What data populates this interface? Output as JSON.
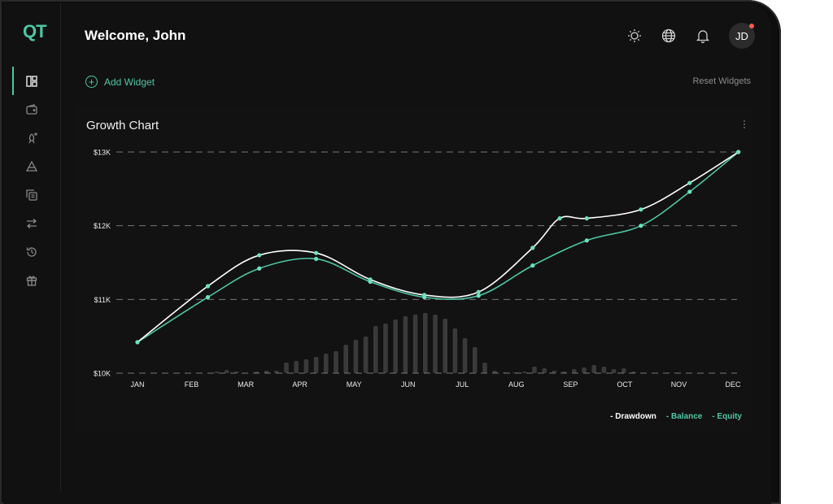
{
  "app": {
    "logo": "QT"
  },
  "header": {
    "title": "Welcome, John",
    "avatar_initials": "JD"
  },
  "icons": {
    "sidebar": [
      "dashboard-icon",
      "wallet-icon",
      "rocket-icon",
      "triangle-stack-icon",
      "copy-icon",
      "transfer-icon",
      "history-icon",
      "gift-icon"
    ],
    "header": [
      "sun-icon",
      "globe-icon",
      "bell-icon"
    ]
  },
  "toolbar": {
    "add_widget": "Add Widget",
    "reset_widgets": "Reset Widgets"
  },
  "widget": {
    "title": "Growth Chart"
  },
  "colors": {
    "accent": "#4fc7a4",
    "drawdown": "#ffffff",
    "balance": "#4fc7a4",
    "equity": "#4fc7a4",
    "notification": "#ff5b4c"
  },
  "chart_data": {
    "type": "line",
    "title": "Growth Chart",
    "categories": [
      "JAN",
      "FEB",
      "MAR",
      "APR",
      "MAY",
      "JUN",
      "JUL",
      "AUG",
      "SEP",
      "OCT",
      "NOV",
      "DEC"
    ],
    "y_ticks": [
      "$10K",
      "$11K",
      "$12K",
      "$13K"
    ],
    "ylim": [
      10000,
      13000
    ],
    "grid": true,
    "legend_position": "bottom-right",
    "series": [
      {
        "name": "- Drawdown",
        "color": "#ffffff",
        "x": [
          0,
          1.3,
          2.25,
          3.3,
          4.3,
          5.3,
          6.3,
          7.3,
          7.8,
          8.3,
          9.3,
          10.2,
          11.1
        ],
        "y": [
          10420,
          11180,
          11600,
          11630,
          11270,
          11060,
          11100,
          11700,
          12100,
          12100,
          12220,
          12580,
          13000
        ]
      },
      {
        "name": "- Balance",
        "color": "#4fc7a4",
        "x": [
          0,
          1.3,
          2.25,
          3.3,
          4.3,
          5.3,
          6.3,
          7.3,
          8.3,
          9.3,
          10.2,
          11.1
        ],
        "y": [
          10420,
          11030,
          11420,
          11550,
          11240,
          11030,
          11050,
          11460,
          11800,
          12000,
          12460,
          13000
        ]
      },
      {
        "name": "- Equity",
        "color": "#4fc7a4",
        "x": [],
        "y": []
      }
    ],
    "histogram_values": [
      0,
      0,
      0,
      0,
      0,
      0,
      0,
      0,
      0.02,
      0.04,
      0.02,
      0,
      0.02,
      0.03,
      0.03,
      0.13,
      0.15,
      0.17,
      0.2,
      0.24,
      0.27,
      0.35,
      0.41,
      0.45,
      0.58,
      0.61,
      0.66,
      0.7,
      0.72,
      0.74,
      0.72,
      0.67,
      0.55,
      0.43,
      0.32,
      0.13,
      0.03,
      0.01,
      0.01,
      0.02,
      0.08,
      0.06,
      0.03,
      0.02,
      0.05,
      0.07,
      0.1,
      0.08,
      0.05,
      0.06,
      0.02,
      0,
      0,
      0,
      0,
      0,
      0,
      0,
      0,
      0,
      0
    ]
  }
}
